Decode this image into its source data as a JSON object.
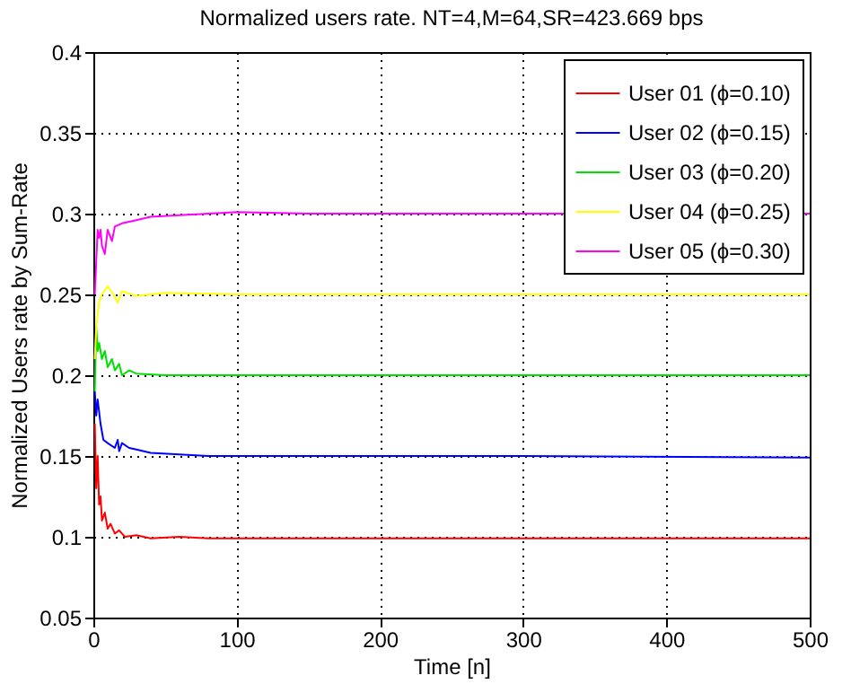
{
  "chart_data": {
    "type": "line",
    "title": "Normalized users rate. NT=4,M=64,SR=423.669 bps",
    "xlabel": "Time [n]",
    "ylabel": "Normalized Users rate by Sum-Rate",
    "xlim": [
      0,
      500
    ],
    "xticks": [
      0,
      100,
      200,
      300,
      400,
      500
    ],
    "ylim": [
      0.05,
      0.4
    ],
    "yticks": [
      0.05,
      0.1,
      0.15,
      0.2,
      0.25,
      0.3,
      0.35,
      0.4
    ],
    "grid": true,
    "legend": "top right",
    "series": [
      {
        "name": "User 01 (ϕ=0.10)",
        "color": "#ff0000",
        "x": [
          1,
          2,
          3,
          4,
          5,
          6,
          8,
          10,
          12,
          15,
          18,
          22,
          30,
          40,
          60,
          80,
          100,
          150,
          200,
          300,
          400,
          500
        ],
        "values": [
          0.17,
          0.13,
          0.15,
          0.12,
          0.125,
          0.11,
          0.115,
          0.105,
          0.108,
          0.102,
          0.104,
          0.1,
          0.101,
          0.099,
          0.1,
          0.099,
          0.099,
          0.099,
          0.099,
          0.099,
          0.099,
          0.099
        ]
      },
      {
        "name": "User 02 (ϕ=0.15)",
        "color": "#0000ff",
        "x": [
          1,
          2,
          3,
          5,
          7,
          10,
          15,
          17,
          18,
          20,
          25,
          30,
          40,
          60,
          80,
          100,
          200,
          300,
          500
        ],
        "values": [
          0.19,
          0.175,
          0.185,
          0.17,
          0.16,
          0.158,
          0.155,
          0.16,
          0.153,
          0.158,
          0.155,
          0.154,
          0.152,
          0.151,
          0.15,
          0.15,
          0.15,
          0.15,
          0.149
        ]
      },
      {
        "name": "User 03 (ϕ=0.20)",
        "color": "#00e000",
        "x": [
          1,
          2,
          3,
          4,
          6,
          8,
          10,
          13,
          15,
          18,
          20,
          25,
          30,
          50,
          100,
          500
        ],
        "values": [
          0.19,
          0.23,
          0.215,
          0.22,
          0.21,
          0.215,
          0.205,
          0.21,
          0.203,
          0.207,
          0.2,
          0.203,
          0.201,
          0.2,
          0.2,
          0.2
        ]
      },
      {
        "name": "User 04 (ϕ=0.25)",
        "color": "#ffff00",
        "x": [
          1,
          2,
          4,
          6,
          10,
          14,
          17,
          20,
          30,
          50,
          100,
          500
        ],
        "values": [
          0.21,
          0.23,
          0.245,
          0.25,
          0.255,
          0.25,
          0.245,
          0.252,
          0.249,
          0.251,
          0.25,
          0.25
        ]
      },
      {
        "name": "User 05 (ϕ=0.30)",
        "color": "#ff00ff",
        "x": [
          1,
          2,
          3,
          4,
          5,
          6,
          8,
          10,
          13,
          15,
          20,
          30,
          40,
          60,
          100,
          150,
          300,
          500
        ],
        "values": [
          0.25,
          0.27,
          0.29,
          0.285,
          0.29,
          0.28,
          0.275,
          0.29,
          0.283,
          0.292,
          0.294,
          0.296,
          0.298,
          0.299,
          0.301,
          0.3,
          0.3,
          0.3
        ]
      }
    ]
  }
}
